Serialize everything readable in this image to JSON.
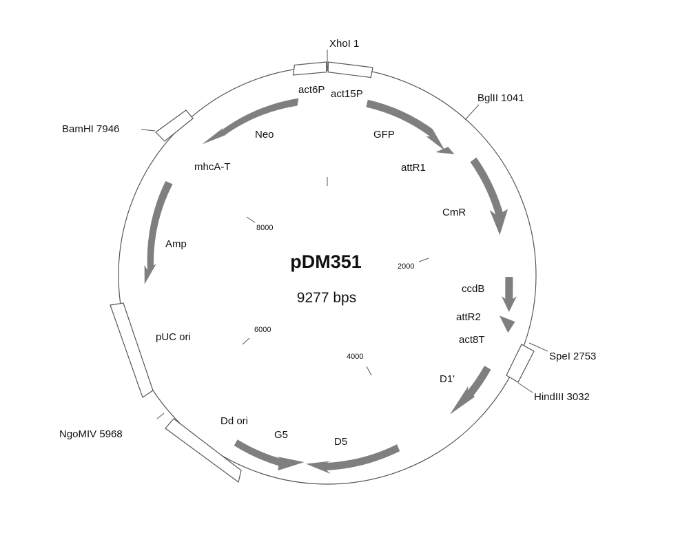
{
  "plasmid": {
    "name": "pDM351",
    "size_label": "9277 bps",
    "total_bp": 9277
  },
  "colors": {
    "backbone": "#555555",
    "feature_arrow": "#7f7f7f",
    "box_stroke": "#555555",
    "text": "#111111"
  },
  "ticks": [
    {
      "label": "2000"
    },
    {
      "label": "4000"
    },
    {
      "label": "6000"
    },
    {
      "label": "8000"
    }
  ],
  "sites": [
    {
      "label": "XhoI 1"
    },
    {
      "label": "BglII 1041"
    },
    {
      "label": "SpeI 2753"
    },
    {
      "label": "HindIII 3032"
    },
    {
      "label": "NgoMIV 5968"
    },
    {
      "label": "BamHI 7946"
    }
  ],
  "features": [
    {
      "label": "act6P"
    },
    {
      "label": "act15P"
    },
    {
      "label": "GFP"
    },
    {
      "label": "attR1"
    },
    {
      "label": "CmR"
    },
    {
      "label": "ccdB"
    },
    {
      "label": "attR2"
    },
    {
      "label": "act8T"
    },
    {
      "label": "D1'"
    },
    {
      "label": "D5"
    },
    {
      "label": "G5"
    },
    {
      "label": "Dd ori"
    },
    {
      "label": "pUC ori"
    },
    {
      "label": "Amp"
    },
    {
      "label": "mhcA-T"
    },
    {
      "label": "Neo"
    }
  ]
}
